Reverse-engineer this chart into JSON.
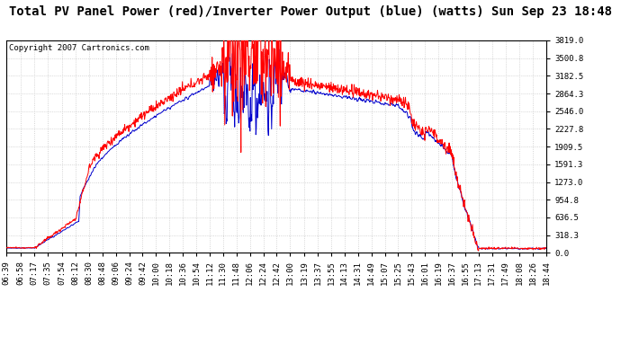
{
  "title": "Total PV Panel Power (red)/Inverter Power Output (blue) (watts) Sun Sep 23 18:48",
  "copyright": "Copyright 2007 Cartronics.com",
  "y_max": 3819.0,
  "y_ticks": [
    0.0,
    318.3,
    636.5,
    954.8,
    1273.0,
    1591.3,
    1909.5,
    2227.8,
    2546.0,
    2864.3,
    3182.5,
    3500.8,
    3819.0
  ],
  "bg_color": "#ffffff",
  "grid_color": "#c8c8c8",
  "red_color": "#ff0000",
  "blue_color": "#0000cc",
  "title_fontsize": 10,
  "tick_fontsize": 6.5,
  "copyright_fontsize": 6.5,
  "x_labels": [
    "06:39",
    "06:58",
    "07:17",
    "07:35",
    "07:54",
    "08:12",
    "08:30",
    "08:48",
    "09:06",
    "09:24",
    "09:42",
    "10:00",
    "10:18",
    "10:36",
    "10:54",
    "11:12",
    "11:30",
    "11:48",
    "12:06",
    "12:24",
    "12:42",
    "13:00",
    "13:19",
    "13:37",
    "13:55",
    "14:13",
    "14:31",
    "14:49",
    "15:07",
    "15:25",
    "15:43",
    "16:01",
    "16:19",
    "16:37",
    "16:55",
    "17:13",
    "17:31",
    "17:49",
    "18:08",
    "18:26",
    "18:44"
  ]
}
